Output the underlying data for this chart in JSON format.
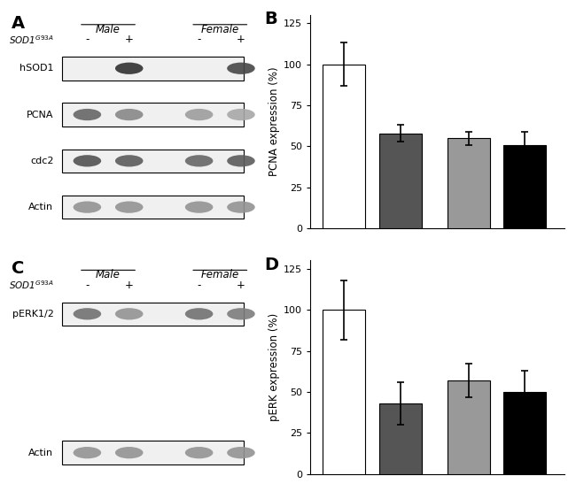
{
  "panel_B": {
    "values": [
      100,
      58,
      55,
      51
    ],
    "errors": [
      13,
      5,
      4,
      8
    ],
    "colors": [
      "#ffffff",
      "#555555",
      "#999999",
      "#000000"
    ],
    "ylabel": "PCNA expression (%)",
    "yticks": [
      0,
      25,
      50,
      75,
      100,
      125
    ],
    "ylim": [
      0,
      130
    ]
  },
  "panel_D": {
    "values": [
      100,
      43,
      57,
      50
    ],
    "errors": [
      18,
      13,
      10,
      13
    ],
    "colors": [
      "#ffffff",
      "#555555",
      "#999999",
      "#000000"
    ],
    "ylabel": "pERK expression (%)",
    "yticks": [
      0,
      25,
      50,
      75,
      100,
      125
    ],
    "ylim": [
      0,
      130
    ]
  },
  "sod1_label": "SOD1$^{G93A}$",
  "x_tick_labels": [
    "(-)",
    "(+)",
    "(-)",
    "(+)"
  ],
  "group_labels": [
    "Male",
    "Female"
  ],
  "panel_labels": [
    "A",
    "B",
    "C",
    "D"
  ],
  "wb_panel_A": {
    "bands": [
      "hSOD1",
      "PCNA",
      "cdc2",
      "Actin"
    ],
    "header_male": "Male",
    "header_female": "Female",
    "sod1_signs": [
      "-",
      "+",
      "-",
      "+"
    ]
  },
  "wb_panel_C": {
    "bands": [
      "pERK1/2",
      "Actin"
    ],
    "header_male": "Male",
    "header_female": "Female",
    "sod1_signs": [
      "-",
      "+",
      "-",
      "+"
    ]
  },
  "background_color": "#ffffff",
  "bar_edgecolor": "#000000",
  "errorbar_color": "#000000",
  "errorbar_linewidth": 1.2,
  "bar_linewidth": 0.8
}
